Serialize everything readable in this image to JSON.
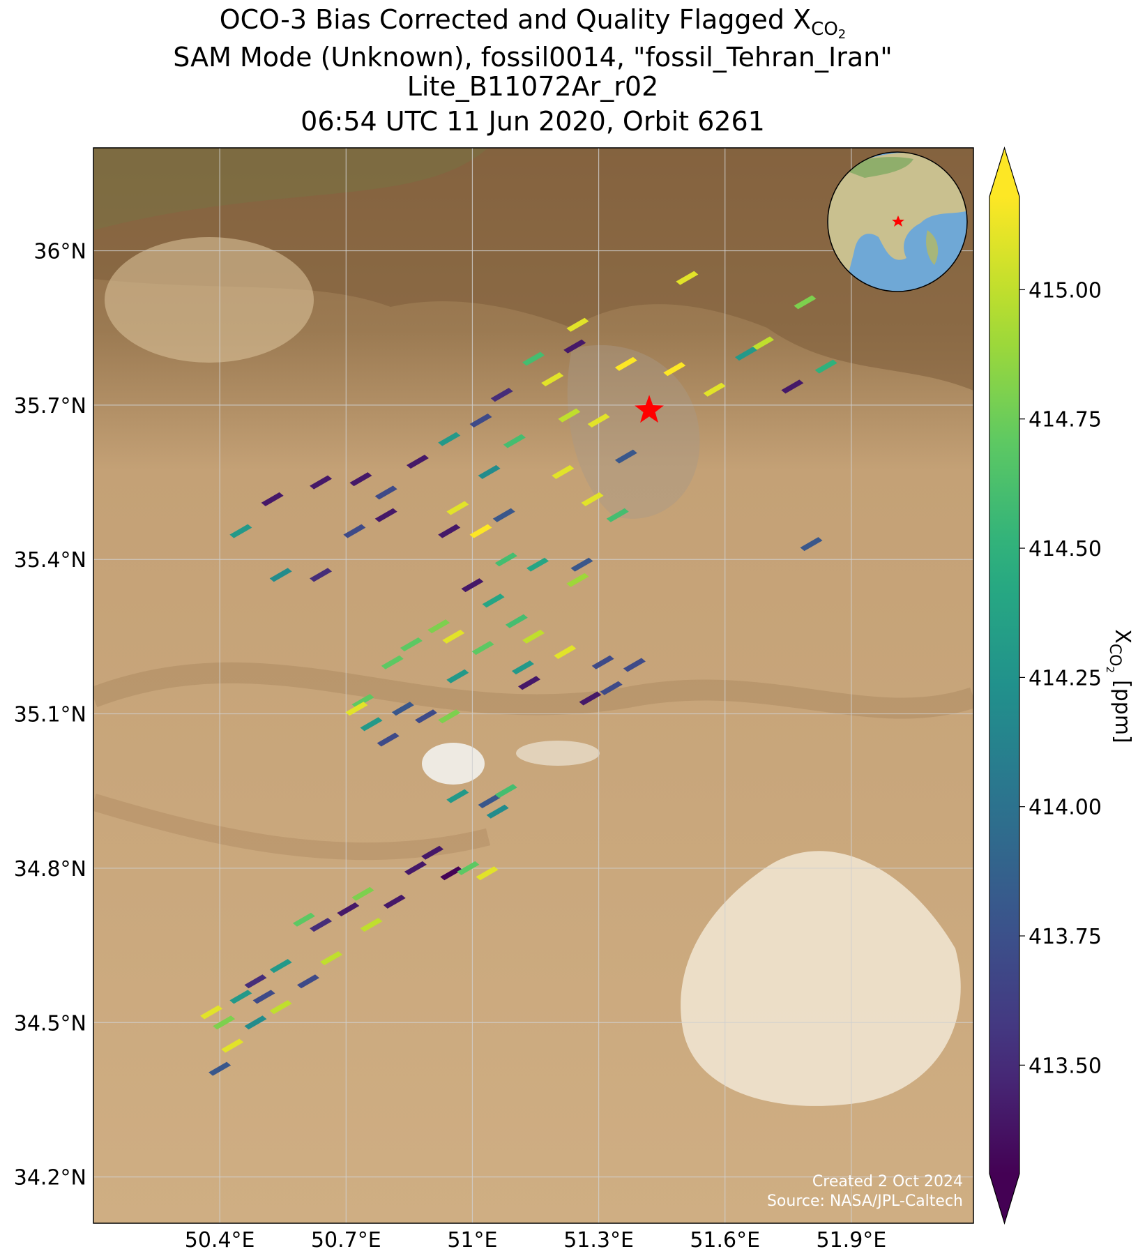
{
  "chart_data": {
    "type": "map-scatter",
    "title": {
      "line1": "OCO-3 Bias Corrected and Quality Flagged X",
      "line1_sub": "CO",
      "line1_subsub": "2",
      "line2": "SAM Mode (Unknown), fossil0014, \"fossil_Tehran_Iran\"",
      "line3": "Lite_B11072Ar_r02",
      "line4": "06:54 UTC 11 Jun 2020, Orbit 6261"
    },
    "xlim": [
      50.1,
      52.19
    ],
    "ylim": [
      34.11,
      36.2
    ],
    "xticks": [
      {
        "value": 50.4,
        "label": "50.4°E"
      },
      {
        "value": 50.7,
        "label": "50.7°E"
      },
      {
        "value": 51.0,
        "label": "51°E"
      },
      {
        "value": 51.3,
        "label": "51.3°E"
      },
      {
        "value": 51.6,
        "label": "51.6°E"
      },
      {
        "value": 51.9,
        "label": "51.9°E"
      }
    ],
    "yticks": [
      {
        "value": 36.0,
        "label": "36°N"
      },
      {
        "value": 35.7,
        "label": "35.7°N"
      },
      {
        "value": 35.4,
        "label": "35.4°N"
      },
      {
        "value": 35.1,
        "label": "35.1°N"
      },
      {
        "value": 34.8,
        "label": "34.8°N"
      },
      {
        "value": 34.5,
        "label": "34.5°N"
      },
      {
        "value": 34.2,
        "label": "34.2°N"
      }
    ],
    "grid": true,
    "soundings": {
      "lon": [
        51.25,
        51.243,
        51.145,
        51.365,
        51.48,
        51.51,
        51.79,
        51.69,
        51.65,
        51.84,
        51.76,
        51.575,
        51.07,
        51.19,
        51.3,
        51.23,
        51.02,
        50.945,
        51.1,
        51.215,
        51.365,
        51.04,
        50.87,
        50.735,
        50.64,
        50.525,
        50.45,
        50.545,
        50.64,
        50.72,
        50.795,
        50.795,
        50.965,
        51.02,
        50.945,
        51.075,
        51.285,
        51.345,
        51.805,
        51.08,
        51.155,
        51.26,
        51.25,
        51.0,
        50.92,
        50.955,
        50.855,
        50.81,
        51.05,
        51.105,
        51.145,
        51.22,
        51.12,
        51.135,
        51.025,
        50.965,
        51.31,
        51.33,
        51.28,
        51.385,
        50.74,
        50.76,
        50.835,
        50.89,
        50.945,
        50.8,
        50.725,
        50.965,
        51.04,
        51.08,
        51.06,
        50.905,
        50.865,
        50.95,
        50.99,
        51.035,
        50.74,
        50.705,
        50.64,
        50.76,
        50.815,
        50.6,
        50.545,
        50.485,
        50.61,
        50.665,
        50.45,
        50.41,
        50.38,
        50.43,
        50.485,
        50.545,
        50.4,
        50.505
      ],
      "lat": [
        35.856,
        35.814,
        35.79,
        35.78,
        35.77,
        35.947,
        35.9,
        35.82,
        35.8,
        35.775,
        35.736,
        35.73,
        35.72,
        35.75,
        35.67,
        35.68,
        35.67,
        35.634,
        35.63,
        35.57,
        35.6,
        35.57,
        35.59,
        35.556,
        35.55,
        35.517,
        35.455,
        35.37,
        35.37,
        35.455,
        35.486,
        35.53,
        35.5,
        35.455,
        35.455,
        35.486,
        35.517,
        35.486,
        35.43,
        35.4,
        35.39,
        35.39,
        35.36,
        35.35,
        35.27,
        35.25,
        35.235,
        35.2,
        35.32,
        35.28,
        35.25,
        35.22,
        35.19,
        35.16,
        35.228,
        35.173,
        35.2,
        35.15,
        35.13,
        35.195,
        35.125,
        35.08,
        35.11,
        35.095,
        35.095,
        35.05,
        35.11,
        34.94,
        34.93,
        34.95,
        34.91,
        34.83,
        34.8,
        34.79,
        34.8,
        34.79,
        34.75,
        34.72,
        34.69,
        34.69,
        34.735,
        34.7,
        34.61,
        34.58,
        34.58,
        34.625,
        34.55,
        34.5,
        34.52,
        34.455,
        34.5,
        34.53,
        34.41,
        34.55
      ],
      "values": [
        415.1,
        413.4,
        414.6,
        415.2,
        415.2,
        415.1,
        414.8,
        415.0,
        414.3,
        414.5,
        413.4,
        415.1,
        413.5,
        415.1,
        415.1,
        415.0,
        413.7,
        414.3,
        414.6,
        415.1,
        413.8,
        414.2,
        413.4,
        413.4,
        413.4,
        413.4,
        414.3,
        414.2,
        413.5,
        413.7,
        413.4,
        413.7,
        415.1,
        415.2,
        413.4,
        413.8,
        415.1,
        414.6,
        413.8,
        414.6,
        414.4,
        413.8,
        414.9,
        413.4,
        414.8,
        415.1,
        414.7,
        414.7,
        414.4,
        414.6,
        415.0,
        415.1,
        414.3,
        413.4,
        414.7,
        414.3,
        413.7,
        413.7,
        413.4,
        413.7,
        414.7,
        414.3,
        413.8,
        413.7,
        414.8,
        413.7,
        415.1,
        414.3,
        413.8,
        414.6,
        414.2,
        413.4,
        413.4,
        413.3,
        414.7,
        415.1,
        414.8,
        413.4,
        413.5,
        415.0,
        413.4,
        414.7,
        414.3,
        413.5,
        413.7,
        415.0,
        414.3,
        414.8,
        415.1,
        415.1,
        414.2,
        415.0,
        413.8,
        413.7
      ]
    },
    "colormap": "viridis",
    "clim": [
      413.29,
      415.18
    ],
    "colorbar": {
      "ticks": [
        {
          "value": 415.0,
          "label": "415.00"
        },
        {
          "value": 414.75,
          "label": "414.75"
        },
        {
          "value": 414.5,
          "label": "414.50"
        },
        {
          "value": 414.25,
          "label": "414.25"
        },
        {
          "value": 414.0,
          "label": "414.00"
        },
        {
          "value": 413.75,
          "label": "413.75"
        },
        {
          "value": 413.5,
          "label": "413.50"
        }
      ],
      "label": "X",
      "label_sub": "CO",
      "label_subsub": "2",
      "label_unit": "[ppm]"
    },
    "target": {
      "lon": 51.42,
      "lat": 35.69
    },
    "footer": [
      "Created 2 Oct 2024",
      "Source: NASA/JPL-Caltech"
    ]
  }
}
